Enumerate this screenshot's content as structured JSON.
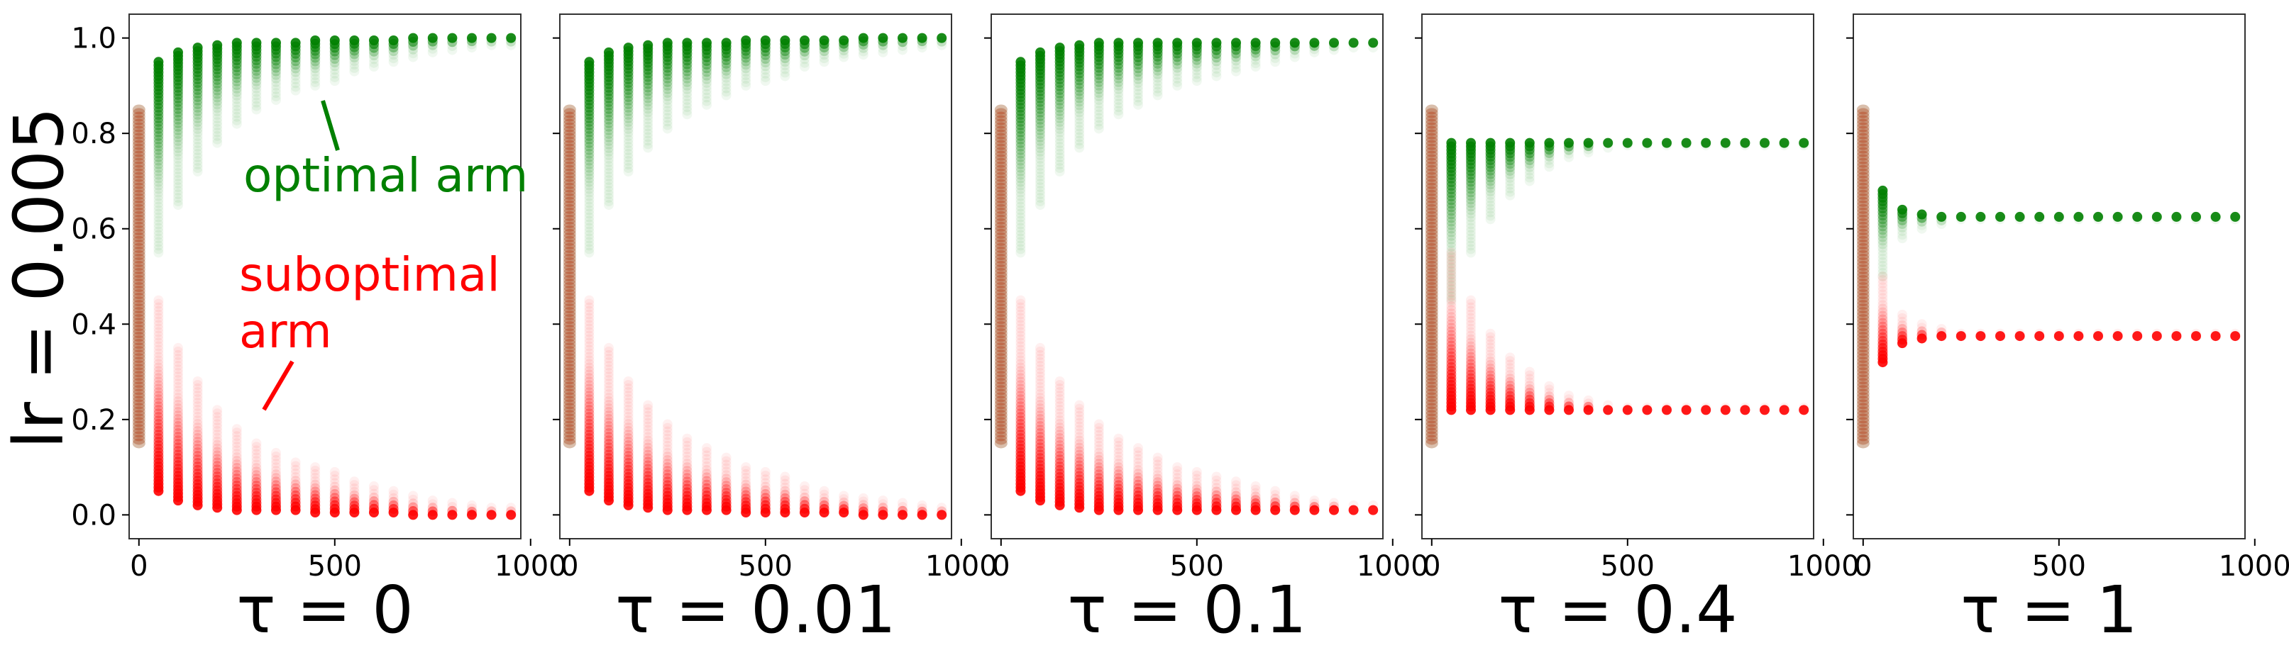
{
  "figure": {
    "ylabel": "lr = 0.005",
    "yticks": [
      "0.0",
      "0.2",
      "0.4",
      "0.6",
      "0.8",
      "1.0"
    ],
    "xticks": [
      "0",
      "500",
      "1000"
    ],
    "colors": {
      "optimal": "#008000",
      "suboptimal": "#ff0000"
    },
    "annotations": {
      "optimal_label": "optimal arm",
      "suboptimal_label_line1": "suboptimal",
      "suboptimal_label_line2": "arm"
    }
  },
  "chart_data": [
    {
      "type": "scatter",
      "title": "",
      "xlabel": "τ = 0",
      "ylabel": "lr = 0.005",
      "xlim": [
        -25,
        975
      ],
      "ylim": [
        -0.05,
        1.05
      ],
      "series": [
        {
          "name": "optimal arm",
          "color": "#008000",
          "x": [
            0,
            50,
            100,
            150,
            200,
            250,
            300,
            350,
            400,
            450,
            500,
            550,
            600,
            650,
            700,
            750,
            800,
            850,
            900,
            950
          ],
          "y_min": [
            0.15,
            0.55,
            0.65,
            0.72,
            0.78,
            0.82,
            0.85,
            0.87,
            0.89,
            0.9,
            0.91,
            0.93,
            0.94,
            0.95,
            0.96,
            0.97,
            0.975,
            0.98,
            0.985,
            0.985
          ],
          "y_max": [
            0.85,
            0.95,
            0.97,
            0.98,
            0.985,
            0.99,
            0.99,
            0.99,
            0.99,
            0.995,
            0.995,
            0.995,
            0.995,
            0.995,
            1.0,
            1.0,
            1.0,
            1.0,
            1.0,
            1.0
          ]
        },
        {
          "name": "suboptimal arm",
          "color": "#ff0000",
          "x": [
            0,
            50,
            100,
            150,
            200,
            250,
            300,
            350,
            400,
            450,
            500,
            550,
            600,
            650,
            700,
            750,
            800,
            850,
            900,
            950
          ],
          "y_min": [
            0.15,
            0.05,
            0.03,
            0.02,
            0.015,
            0.01,
            0.01,
            0.01,
            0.01,
            0.005,
            0.005,
            0.005,
            0.005,
            0.005,
            0.0,
            0.0,
            0.0,
            0.0,
            0.0,
            0.0
          ],
          "y_max": [
            0.85,
            0.45,
            0.35,
            0.28,
            0.22,
            0.18,
            0.15,
            0.13,
            0.11,
            0.1,
            0.09,
            0.07,
            0.06,
            0.05,
            0.04,
            0.03,
            0.025,
            0.02,
            0.015,
            0.015
          ]
        }
      ]
    },
    {
      "type": "scatter",
      "title": "",
      "xlabel": "τ = 0.01",
      "ylabel": "",
      "xlim": [
        -25,
        975
      ],
      "ylim": [
        -0.05,
        1.05
      ],
      "series": [
        {
          "name": "optimal arm",
          "color": "#008000",
          "x": [
            0,
            50,
            100,
            150,
            200,
            250,
            300,
            350,
            400,
            450,
            500,
            550,
            600,
            650,
            700,
            750,
            800,
            850,
            900,
            950
          ],
          "y_min": [
            0.15,
            0.55,
            0.65,
            0.72,
            0.77,
            0.81,
            0.84,
            0.86,
            0.88,
            0.9,
            0.91,
            0.92,
            0.94,
            0.95,
            0.96,
            0.965,
            0.97,
            0.975,
            0.98,
            0.985
          ],
          "y_max": [
            0.85,
            0.95,
            0.97,
            0.98,
            0.985,
            0.99,
            0.99,
            0.99,
            0.99,
            0.995,
            0.995,
            0.995,
            0.995,
            0.995,
            0.995,
            1.0,
            1.0,
            1.0,
            1.0,
            1.0
          ]
        },
        {
          "name": "suboptimal arm",
          "color": "#ff0000",
          "x": [
            0,
            50,
            100,
            150,
            200,
            250,
            300,
            350,
            400,
            450,
            500,
            550,
            600,
            650,
            700,
            750,
            800,
            850,
            900,
            950
          ],
          "y_min": [
            0.15,
            0.05,
            0.03,
            0.02,
            0.015,
            0.01,
            0.01,
            0.01,
            0.01,
            0.005,
            0.005,
            0.005,
            0.005,
            0.005,
            0.005,
            0.0,
            0.0,
            0.0,
            0.0,
            0.0
          ],
          "y_max": [
            0.85,
            0.45,
            0.35,
            0.28,
            0.23,
            0.19,
            0.16,
            0.14,
            0.12,
            0.1,
            0.09,
            0.08,
            0.06,
            0.05,
            0.04,
            0.035,
            0.03,
            0.025,
            0.02,
            0.015
          ]
        }
      ]
    },
    {
      "type": "scatter",
      "title": "",
      "xlabel": "τ = 0.1",
      "ylabel": "",
      "xlim": [
        -25,
        975
      ],
      "ylim": [
        -0.05,
        1.05
      ],
      "series": [
        {
          "name": "optimal arm",
          "color": "#008000",
          "x": [
            0,
            50,
            100,
            150,
            200,
            250,
            300,
            350,
            400,
            450,
            500,
            550,
            600,
            650,
            700,
            750,
            800,
            850,
            900,
            950
          ],
          "y_min": [
            0.15,
            0.55,
            0.65,
            0.72,
            0.77,
            0.81,
            0.84,
            0.86,
            0.88,
            0.9,
            0.91,
            0.92,
            0.93,
            0.94,
            0.95,
            0.96,
            0.97,
            0.975,
            0.98,
            0.98
          ],
          "y_max": [
            0.85,
            0.95,
            0.97,
            0.98,
            0.985,
            0.99,
            0.99,
            0.99,
            0.99,
            0.99,
            0.99,
            0.99,
            0.99,
            0.99,
            0.99,
            0.99,
            0.99,
            0.99,
            0.99,
            0.99
          ]
        },
        {
          "name": "suboptimal arm",
          "color": "#ff0000",
          "x": [
            0,
            50,
            100,
            150,
            200,
            250,
            300,
            350,
            400,
            450,
            500,
            550,
            600,
            650,
            700,
            750,
            800,
            850,
            900,
            950
          ],
          "y_min": [
            0.15,
            0.05,
            0.03,
            0.02,
            0.015,
            0.01,
            0.01,
            0.01,
            0.01,
            0.01,
            0.01,
            0.01,
            0.01,
            0.01,
            0.01,
            0.01,
            0.01,
            0.01,
            0.01,
            0.01
          ],
          "y_max": [
            0.85,
            0.45,
            0.35,
            0.28,
            0.23,
            0.19,
            0.16,
            0.14,
            0.12,
            0.1,
            0.09,
            0.08,
            0.07,
            0.06,
            0.05,
            0.04,
            0.03,
            0.025,
            0.02,
            0.02
          ]
        }
      ]
    },
    {
      "type": "scatter",
      "title": "",
      "xlabel": "τ = 0.4",
      "ylabel": "",
      "xlim": [
        -25,
        975
      ],
      "ylim": [
        -0.05,
        1.05
      ],
      "series": [
        {
          "name": "optimal arm",
          "color": "#008000",
          "x": [
            0,
            50,
            100,
            150,
            200,
            250,
            300,
            350,
            400,
            450,
            500,
            550,
            600,
            650,
            700,
            750,
            800,
            850,
            900,
            950
          ],
          "y_min": [
            0.15,
            0.45,
            0.55,
            0.62,
            0.67,
            0.7,
            0.73,
            0.75,
            0.76,
            0.77,
            0.775,
            0.775,
            0.775,
            0.775,
            0.775,
            0.775,
            0.775,
            0.775,
            0.775,
            0.775
          ],
          "y_max": [
            0.85,
            0.78,
            0.78,
            0.78,
            0.78,
            0.78,
            0.78,
            0.78,
            0.78,
            0.78,
            0.78,
            0.78,
            0.78,
            0.78,
            0.78,
            0.78,
            0.78,
            0.78,
            0.78,
            0.78
          ]
        },
        {
          "name": "suboptimal arm",
          "color": "#ff0000",
          "x": [
            0,
            50,
            100,
            150,
            200,
            250,
            300,
            350,
            400,
            450,
            500,
            550,
            600,
            650,
            700,
            750,
            800,
            850,
            900,
            950
          ],
          "y_min": [
            0.15,
            0.22,
            0.22,
            0.22,
            0.22,
            0.22,
            0.22,
            0.22,
            0.22,
            0.22,
            0.22,
            0.22,
            0.22,
            0.22,
            0.22,
            0.22,
            0.22,
            0.22,
            0.22,
            0.22
          ],
          "y_max": [
            0.85,
            0.55,
            0.45,
            0.38,
            0.33,
            0.3,
            0.27,
            0.25,
            0.24,
            0.23,
            0.225,
            0.225,
            0.225,
            0.225,
            0.225,
            0.225,
            0.225,
            0.225,
            0.225,
            0.225
          ]
        }
      ]
    },
    {
      "type": "scatter",
      "title": "",
      "xlabel": "τ = 1",
      "ylabel": "",
      "xlim": [
        -25,
        975
      ],
      "ylim": [
        -0.05,
        1.05
      ],
      "series": [
        {
          "name": "optimal arm",
          "color": "#008000",
          "x": [
            0,
            50,
            100,
            150,
            200,
            250,
            300,
            350,
            400,
            450,
            500,
            550,
            600,
            650,
            700,
            750,
            800,
            850,
            900,
            950
          ],
          "y_min": [
            0.15,
            0.5,
            0.58,
            0.6,
            0.61,
            0.62,
            0.62,
            0.62,
            0.62,
            0.62,
            0.62,
            0.62,
            0.62,
            0.62,
            0.62,
            0.62,
            0.62,
            0.62,
            0.62,
            0.62
          ],
          "y_max": [
            0.85,
            0.68,
            0.64,
            0.63,
            0.625,
            0.625,
            0.625,
            0.625,
            0.625,
            0.625,
            0.625,
            0.625,
            0.625,
            0.625,
            0.625,
            0.625,
            0.625,
            0.625,
            0.625,
            0.625
          ]
        },
        {
          "name": "suboptimal arm",
          "color": "#ff0000",
          "x": [
            0,
            50,
            100,
            150,
            200,
            250,
            300,
            350,
            400,
            450,
            500,
            550,
            600,
            650,
            700,
            750,
            800,
            850,
            900,
            950
          ],
          "y_min": [
            0.15,
            0.32,
            0.36,
            0.37,
            0.375,
            0.375,
            0.375,
            0.375,
            0.375,
            0.375,
            0.375,
            0.375,
            0.375,
            0.375,
            0.375,
            0.375,
            0.375,
            0.375,
            0.375,
            0.375
          ],
          "y_max": [
            0.85,
            0.5,
            0.42,
            0.4,
            0.39,
            0.38,
            0.38,
            0.38,
            0.38,
            0.38,
            0.38,
            0.38,
            0.38,
            0.38,
            0.38,
            0.38,
            0.38,
            0.38,
            0.38,
            0.38
          ]
        }
      ]
    }
  ]
}
